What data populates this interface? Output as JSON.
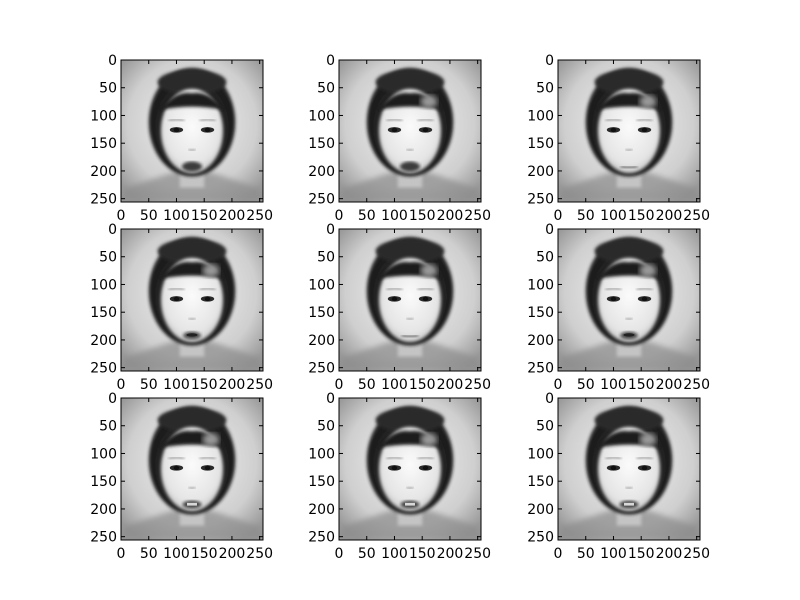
{
  "chart_data": {
    "type": "heatmap",
    "grid": [
      3,
      3
    ],
    "colormap": "gray",
    "image_size": [
      256,
      256
    ],
    "xlim": [
      0,
      256
    ],
    "ylim": [
      256,
      0
    ],
    "xticks": [
      0,
      50,
      100,
      150,
      200,
      250
    ],
    "yticks": [
      0,
      50,
      100,
      150,
      200,
      250
    ],
    "xtick_labels": [
      "0",
      "50",
      "100",
      "150",
      "200",
      "250"
    ],
    "ytick_labels": [
      "0",
      "50",
      "100",
      "150",
      "200",
      "250"
    ],
    "panels": [
      {
        "mouth": "open-dark",
        "hair_patch": false
      },
      {
        "mouth": "open-dark",
        "hair_patch": true
      },
      {
        "mouth": "closed",
        "hair_patch": true
      },
      {
        "mouth": "open",
        "hair_patch": true
      },
      {
        "mouth": "closed",
        "hair_patch": true
      },
      {
        "mouth": "open",
        "hair_patch": true
      },
      {
        "mouth": "teeth",
        "hair_patch": true
      },
      {
        "mouth": "teeth",
        "hair_patch": true
      },
      {
        "mouth": "teeth",
        "hair_patch": true
      }
    ]
  }
}
